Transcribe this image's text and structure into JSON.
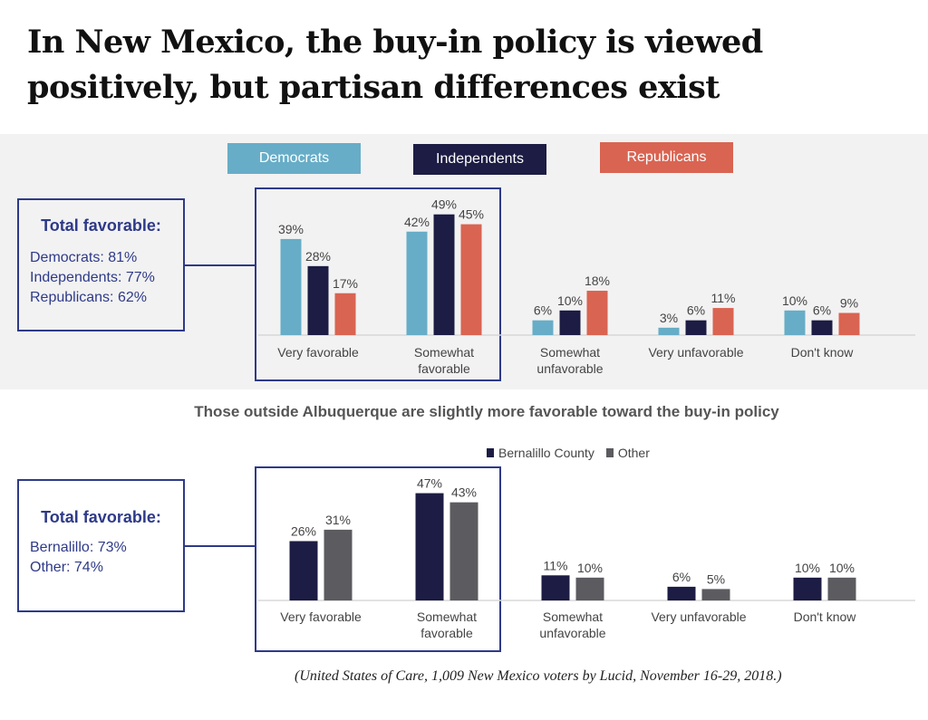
{
  "title_line1": "In New Mexico, the buy-in policy is viewed",
  "title_line2": "positively, but partisan differences exist",
  "colors": {
    "democrats": "#67adc7",
    "independents": "#1c1c44",
    "republicans": "#d96452",
    "other": "#5b5b60",
    "accent": "#2e3a88"
  },
  "chart_data": [
    {
      "type": "bar",
      "categories": [
        "Very favorable",
        "Somewhat favorable",
        "Somewhat unfavorable",
        "Very unfavorable",
        "Don't know"
      ],
      "series": [
        {
          "name": "Democrats",
          "values": [
            39,
            42,
            6,
            3,
            10
          ]
        },
        {
          "name": "Independents",
          "values": [
            28,
            49,
            10,
            6,
            6
          ]
        },
        {
          "name": "Republicans",
          "values": [
            17,
            45,
            18,
            11,
            9
          ]
        }
      ],
      "legend": "top",
      "unit": "%",
      "callout": {
        "heading": "Total favorable:",
        "lines": [
          "Democrats: 81%",
          "Independents: 77%",
          "Republicans: 62%"
        ]
      }
    },
    {
      "type": "bar",
      "title": "Those outside Albuquerque are slightly more favorable toward the buy-in policy",
      "categories": [
        "Very favorable",
        "Somewhat favorable",
        "Somewhat unfavorable",
        "Very unfavorable",
        "Don't know"
      ],
      "series": [
        {
          "name": "Bernalillo County",
          "values": [
            26,
            47,
            11,
            6,
            10
          ]
        },
        {
          "name": "Other",
          "values": [
            31,
            43,
            10,
            5,
            10
          ]
        }
      ],
      "legend": "top",
      "unit": "%",
      "callout": {
        "heading": "Total favorable:",
        "lines": [
          "Bernalillo: 73%",
          "Other: 74%"
        ]
      }
    }
  ],
  "footnote": "(United States of Care, 1,009 New Mexico voters by Lucid, November 16-29, 2018.)"
}
